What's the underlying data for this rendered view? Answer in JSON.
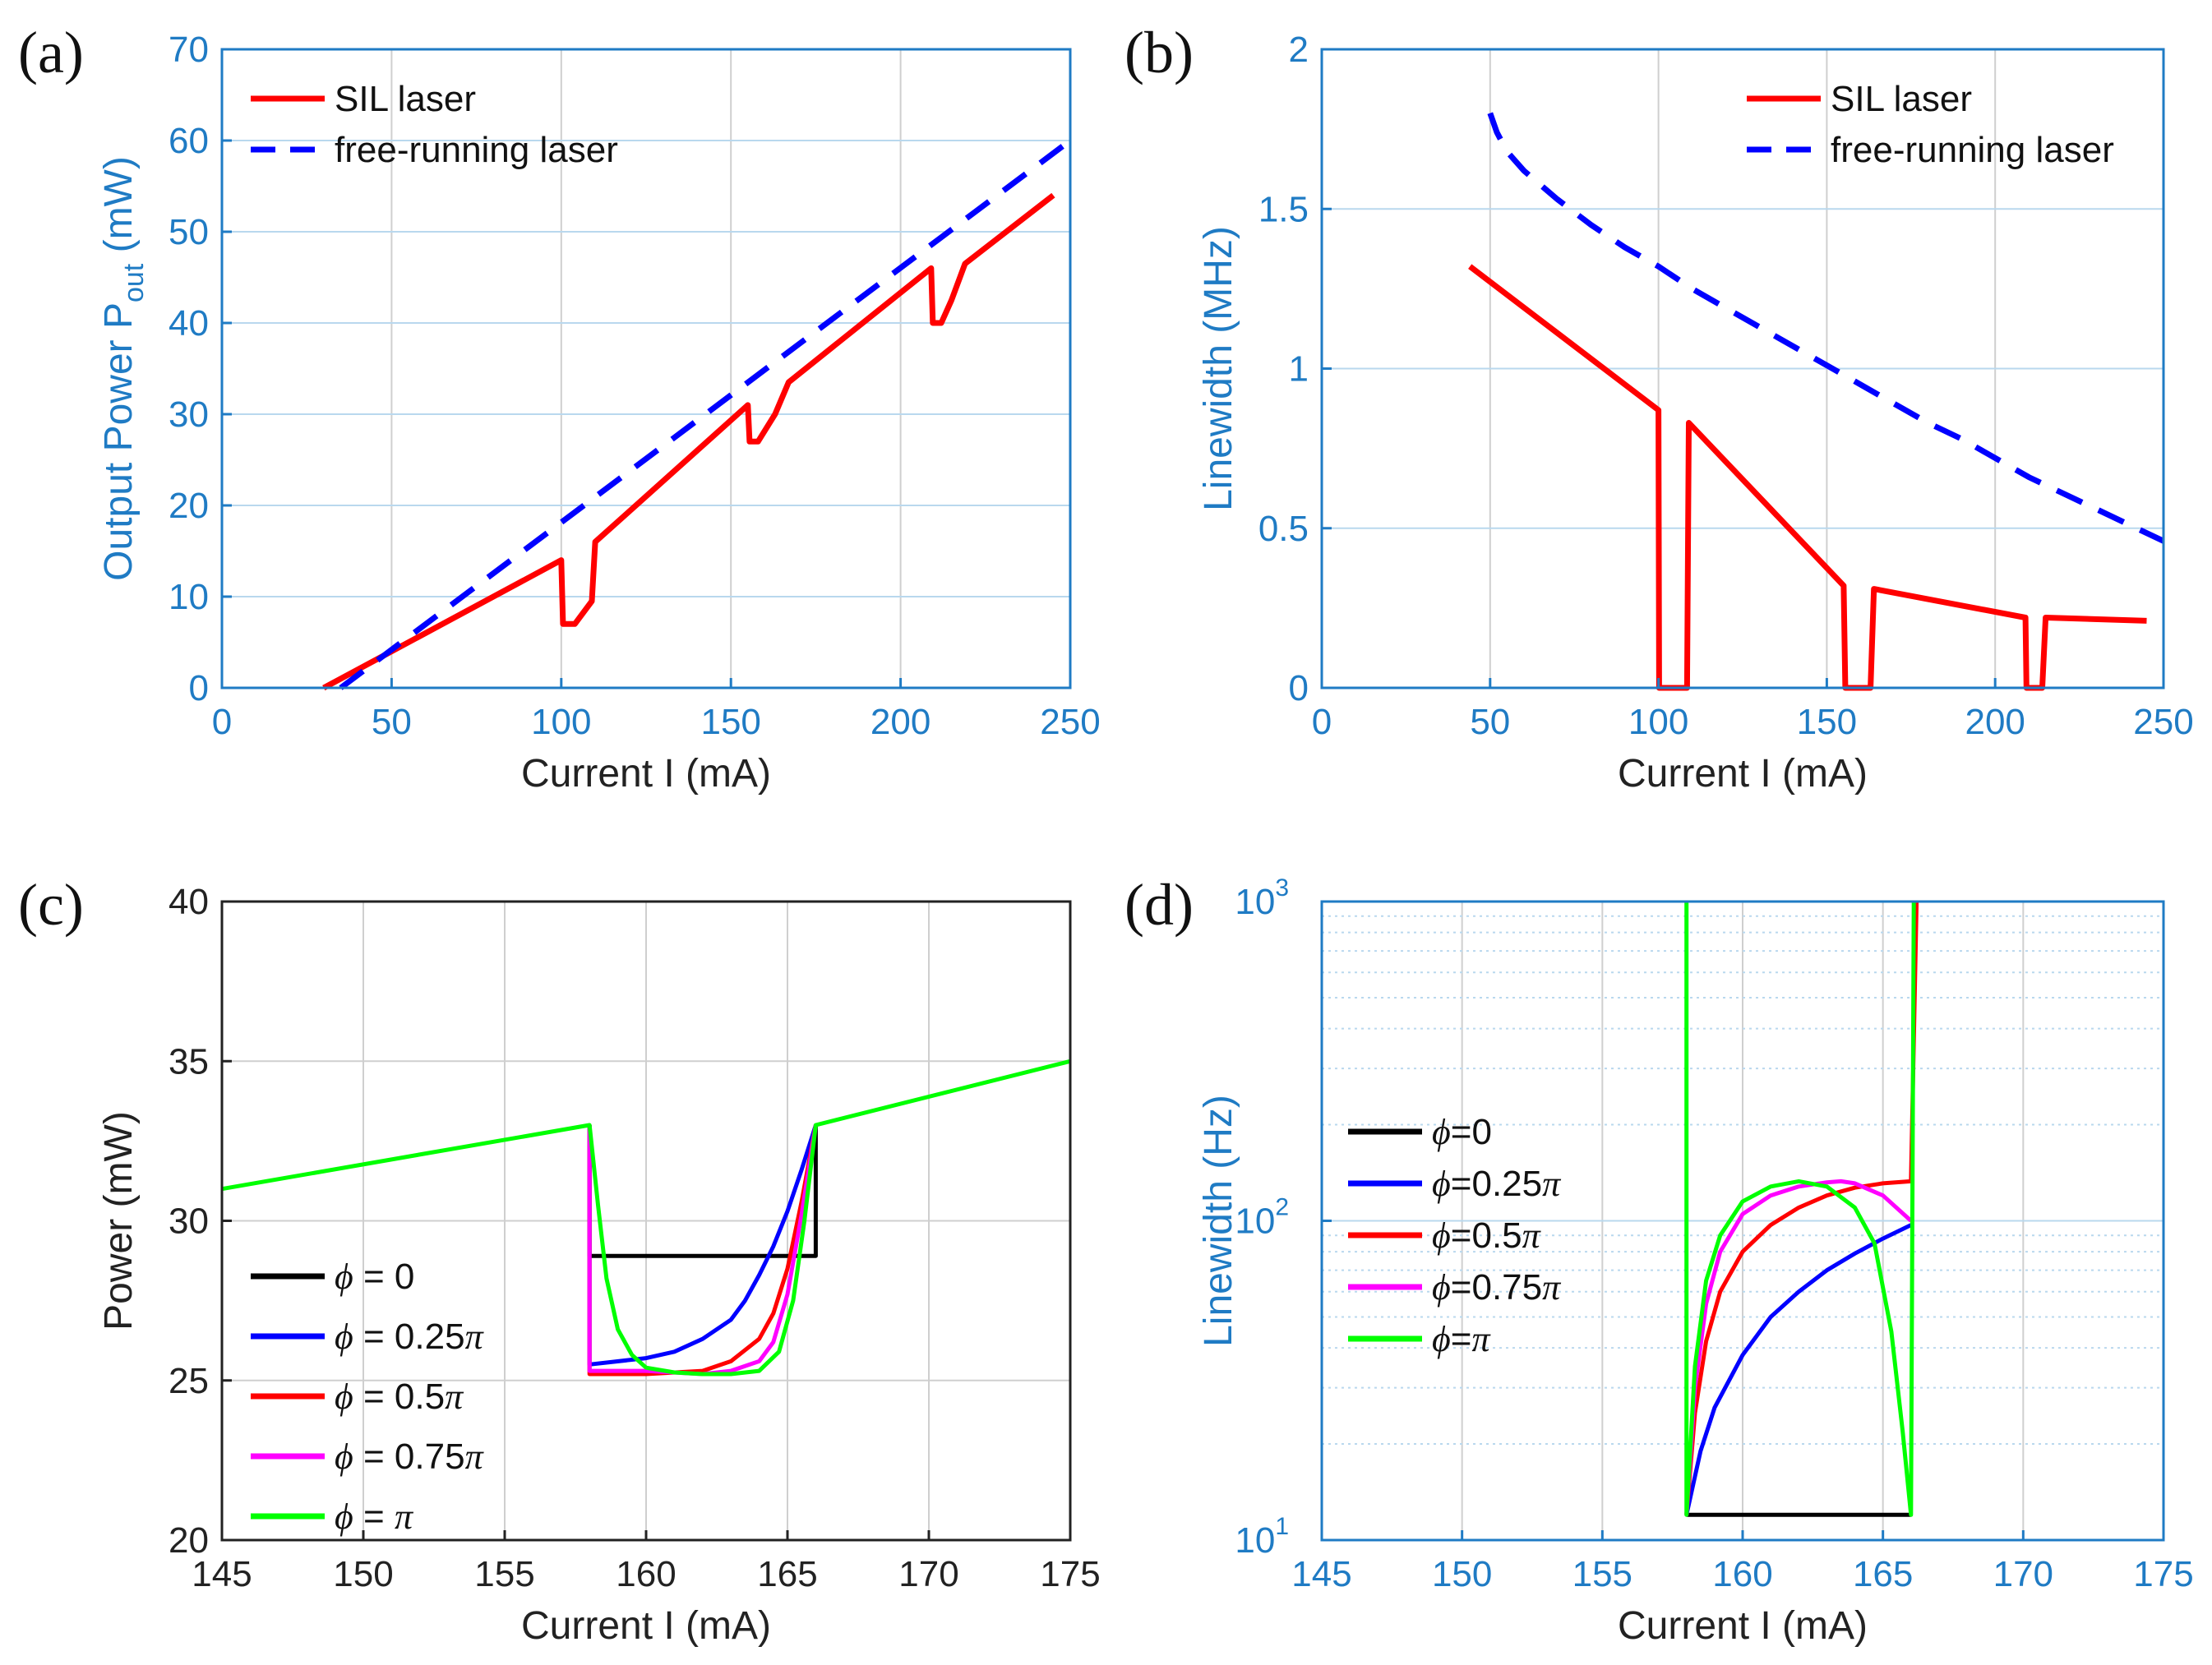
{
  "colors": {
    "blue_axis": "#1f7bc4",
    "black_axis": "#222222",
    "grid": "#cfcfcf",
    "grid_blue": "#b9d8ee",
    "red": "#ff0000",
    "blue": "#0000ff",
    "black": "#000000",
    "magenta": "#ff00ff",
    "green": "#00ff00"
  },
  "chart_data": [
    {
      "id": "a",
      "panel_label": "(a)",
      "type": "line",
      "xlabel": "Current I (mA)",
      "ylabel": "Output Power P",
      "ylabel_sub": "out",
      "ylabel_unit": " (mW)",
      "axis_color": "blue_axis",
      "xlim": [
        0,
        250
      ],
      "ylim": [
        0,
        70
      ],
      "xticks": [
        0,
        50,
        100,
        150,
        200,
        250
      ],
      "yticks": [
        0,
        10,
        20,
        30,
        40,
        50,
        60,
        70
      ],
      "xtick_labels": [
        "0",
        "50",
        "100",
        "150",
        "200",
        "250"
      ],
      "ytick_labels": [
        "0",
        "10",
        "20",
        "30",
        "40",
        "50",
        "60",
        "70"
      ],
      "legend_position": "top-left",
      "series": [
        {
          "name": "SIL laser",
          "color": "red",
          "dash": false,
          "x": [
            30,
            100,
            100.5,
            104,
            109,
            110,
            155,
            155.5,
            158,
            163,
            167,
            209,
            209.5,
            212,
            215,
            219,
            245
          ],
          "y": [
            0,
            14,
            7,
            7,
            9.5,
            16,
            31,
            27,
            27,
            30,
            33.5,
            46,
            40,
            40,
            42.5,
            46.5,
            54
          ]
        },
        {
          "name": "free-running laser",
          "color": "blue",
          "dash": true,
          "x": [
            35,
            250
          ],
          "y": [
            0,
            60
          ]
        }
      ]
    },
    {
      "id": "b",
      "panel_label": "(b)",
      "type": "line",
      "xlabel": "Current I (mA)",
      "ylabel": "Linewidth (MHz)",
      "axis_color": "blue_axis",
      "xlim": [
        0,
        250
      ],
      "ylim": [
        0,
        2
      ],
      "xticks": [
        0,
        50,
        100,
        150,
        200,
        250
      ],
      "yticks": [
        0,
        0.5,
        1,
        1.5,
        2
      ],
      "xtick_labels": [
        "0",
        "50",
        "100",
        "150",
        "200",
        "250"
      ],
      "ytick_labels": [
        "0",
        "0.5",
        "1",
        "1.5",
        "2"
      ],
      "legend_position": "top-right",
      "series": [
        {
          "name": "SIL laser",
          "color": "red",
          "dash": false,
          "x": [
            44,
            100,
            100.2,
            103,
            108.5,
            109,
            155,
            155.5,
            163,
            164,
            209,
            209.3,
            214,
            215,
            245
          ],
          "y": [
            1.32,
            0.87,
            0,
            0,
            0,
            0.83,
            0.32,
            0,
            0,
            0.31,
            0.22,
            0,
            0,
            0.22,
            0.21
          ]
        },
        {
          "name": "free-running laser",
          "color": "blue",
          "dash": true,
          "x": [
            50,
            52,
            55,
            60,
            70,
            80,
            90,
            100,
            110,
            120,
            130,
            140,
            150,
            160,
            170,
            180,
            190,
            200,
            210,
            220,
            230,
            240,
            250
          ],
          "y": [
            1.8,
            1.74,
            1.68,
            1.62,
            1.53,
            1.45,
            1.38,
            1.32,
            1.25,
            1.19,
            1.13,
            1.07,
            1.01,
            0.95,
            0.89,
            0.83,
            0.78,
            0.72,
            0.66,
            0.61,
            0.56,
            0.51,
            0.46
          ]
        }
      ]
    },
    {
      "id": "c",
      "panel_label": "(c)",
      "type": "line",
      "xlabel": "Current I (mA)",
      "ylabel": "Power (mW)",
      "axis_color": "black_axis",
      "xlim": [
        145,
        175
      ],
      "ylim": [
        20,
        40
      ],
      "xticks": [
        145,
        150,
        155,
        160,
        165,
        170,
        175
      ],
      "yticks": [
        20,
        25,
        30,
        35,
        40
      ],
      "xtick_labels": [
        "145",
        "150",
        "155",
        "160",
        "165",
        "170",
        "175"
      ],
      "ytick_labels": [
        "20",
        "25",
        "30",
        "35",
        "40"
      ],
      "legend_position": "lower-left",
      "series": [
        {
          "name": "ϕ = 0",
          "legend_symbol": "ϕ",
          "legend_rest": " = 0",
          "color": "black",
          "dash": false,
          "x": [
            158,
            158,
            166,
            166
          ],
          "y": [
            33,
            28.9,
            28.9,
            33
          ]
        },
        {
          "name": "ϕ = 0.25π",
          "legend_symbol": "ϕ",
          "legend_rest": " = 0.25",
          "legend_pi": "π",
          "color": "blue",
          "dash": false,
          "x": [
            158,
            158,
            160,
            161,
            162,
            163,
            163.5,
            164,
            164.5,
            165,
            165.5,
            166
          ],
          "y": [
            33,
            25.5,
            25.7,
            25.9,
            26.3,
            26.9,
            27.5,
            28.3,
            29.2,
            30.3,
            31.6,
            33
          ]
        },
        {
          "name": "ϕ = 0.5π",
          "legend_symbol": "ϕ",
          "legend_rest": " = 0.5",
          "legend_pi": "π",
          "color": "red",
          "dash": false,
          "x": [
            158,
            158,
            160,
            162,
            163,
            164,
            164.5,
            165,
            165.5,
            166
          ],
          "y": [
            33,
            25.2,
            25.2,
            25.3,
            25.6,
            26.3,
            27.1,
            28.5,
            30.6,
            33
          ]
        },
        {
          "name": "ϕ = 0.75π",
          "legend_symbol": "ϕ",
          "legend_rest": " = 0.75",
          "legend_pi": "π",
          "color": "magenta",
          "dash": false,
          "x": [
            158,
            158,
            160,
            162,
            163,
            164,
            164.5,
            165,
            165.5,
            166
          ],
          "y": [
            33,
            25.3,
            25.3,
            25.2,
            25.3,
            25.6,
            26.2,
            27.7,
            30.2,
            33
          ]
        },
        {
          "name": "ϕ = π",
          "legend_symbol": "ϕ",
          "legend_rest": " = ",
          "legend_pi": "π",
          "color": "green",
          "dash": false,
          "x": [
            145,
            158,
            158.3,
            158.6,
            159,
            159.5,
            160,
            161,
            162,
            163,
            164,
            164.7,
            165.2,
            165.6,
            166,
            175
          ],
          "y": [
            31,
            33,
            30.5,
            28.2,
            26.6,
            25.8,
            25.4,
            25.25,
            25.2,
            25.2,
            25.3,
            25.9,
            27.5,
            30,
            33,
            35
          ]
        }
      ]
    },
    {
      "id": "d",
      "panel_label": "(d)",
      "type": "line",
      "log_y": true,
      "xlabel": "Current I (mA)",
      "ylabel": "Linewidth (Hz)",
      "axis_color": "blue_axis",
      "xlim": [
        145,
        175
      ],
      "ylim": [
        10,
        1000
      ],
      "xticks": [
        145,
        150,
        155,
        160,
        165,
        170,
        175
      ],
      "xtick_labels": [
        "145",
        "150",
        "155",
        "160",
        "165",
        "170",
        "175"
      ],
      "ytick_bases": [
        "10",
        "10",
        "10"
      ],
      "ytick_exps": [
        "1",
        "2",
        "3"
      ],
      "yticks": [
        10,
        100,
        1000
      ],
      "legend_position": "middle-left",
      "series": [
        {
          "name": "ϕ=0",
          "legend_symbol": "ϕ",
          "legend_rest": "=0",
          "color": "black",
          "dash": false,
          "x": [
            158,
            166
          ],
          "y": [
            12,
            12
          ]
        },
        {
          "name": "ϕ=0.25π",
          "legend_symbol": "ϕ",
          "legend_rest": "=0.25",
          "legend_pi": "π",
          "color": "blue",
          "dash": false,
          "x": [
            158,
            158.5,
            159,
            160,
            161,
            162,
            163,
            164,
            165,
            166
          ],
          "y": [
            12,
            19,
            26,
            38,
            50,
            60,
            70,
            79,
            88,
            97
          ]
        },
        {
          "name": "ϕ=0.5π",
          "legend_symbol": "ϕ",
          "legend_rest": "=0.5",
          "legend_pi": "π",
          "color": "red",
          "dash": false,
          "x": [
            158,
            158.3,
            158.7,
            159.2,
            160,
            161,
            162,
            163,
            164,
            165,
            166,
            166.2
          ],
          "y": [
            12,
            25,
            42,
            60,
            80,
            97,
            110,
            120,
            127,
            131,
            133,
            1000
          ]
        },
        {
          "name": "ϕ=0.75π",
          "legend_symbol": "ϕ",
          "legend_rest": "=0.75",
          "legend_pi": "π",
          "color": "magenta",
          "dash": false,
          "x": [
            158,
            158.3,
            158.7,
            159.2,
            160,
            161,
            162,
            163,
            163.5,
            164,
            165,
            166
          ],
          "y": [
            12,
            30,
            55,
            80,
            105,
            120,
            128,
            132,
            133,
            131,
            120,
            100
          ]
        },
        {
          "name": "ϕ=π",
          "legend_symbol": "ϕ",
          "legend_rest": "=",
          "legend_pi": "π",
          "color": "green",
          "dash": false,
          "x": [
            158,
            158,
            158.3,
            158.7,
            159.2,
            160,
            161,
            162,
            163,
            164,
            164.7,
            165.3,
            165.7,
            166,
            166,
            166.1
          ],
          "y": [
            1000,
            12,
            35,
            65,
            90,
            115,
            128,
            133,
            128,
            110,
            85,
            45,
            22,
            12,
            12,
            1000
          ]
        }
      ]
    }
  ]
}
